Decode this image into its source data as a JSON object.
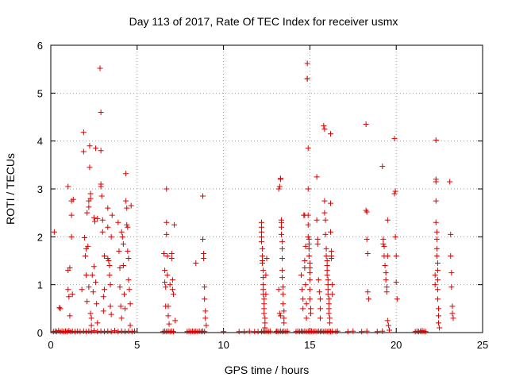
{
  "chart_data": {
    "type": "scatter",
    "title": "Day 113 of 2017, Rate Of TEC Index for receiver usmx",
    "xlabel": "GPS time / hours",
    "ylabel": "ROTI / TECUs",
    "xlim": [
      0,
      25
    ],
    "ylim": [
      0,
      6
    ],
    "xticks": [
      0,
      5,
      10,
      15,
      20,
      25
    ],
    "yticks": [
      0,
      1,
      2,
      3,
      4,
      5,
      6
    ],
    "grid": true,
    "marker": "plus",
    "color": "#dd0000",
    "points": [
      [
        0.15,
        0.02
      ],
      [
        0.25,
        0.03
      ],
      [
        0.35,
        0.02
      ],
      [
        0.45,
        0.04
      ],
      [
        0.55,
        0.02
      ],
      [
        0.65,
        0.03
      ],
      [
        0.75,
        0.02
      ],
      [
        0.85,
        0.03
      ],
      [
        0.95,
        0.02
      ],
      [
        1.05,
        0.04
      ],
      [
        1.15,
        0.02
      ],
      [
        1.25,
        0.03
      ],
      [
        1.4,
        0.02
      ],
      [
        1.55,
        0.03
      ],
      [
        1.7,
        0.02
      ],
      [
        1.9,
        0.03
      ],
      [
        2.05,
        0.02
      ],
      [
        2.2,
        0.03
      ],
      [
        2.35,
        0.02
      ],
      [
        2.5,
        0.04
      ],
      [
        2.7,
        0.02
      ],
      [
        2.9,
        0.03
      ],
      [
        3.1,
        0.02
      ],
      [
        3.3,
        0.03
      ],
      [
        3.5,
        0.02
      ],
      [
        3.7,
        0.04
      ],
      [
        3.9,
        0.02
      ],
      [
        4.1,
        0.03
      ],
      [
        4.3,
        0.02
      ],
      [
        4.5,
        0.03
      ],
      [
        4.7,
        0.02
      ],
      [
        4.85,
        0.03
      ],
      [
        0.2,
        2.1
      ],
      [
        0.5,
        0.52
      ],
      [
        0.55,
        0.5
      ],
      [
        1.0,
        3.05
      ],
      [
        1.0,
        1.3
      ],
      [
        1.0,
        0.9
      ],
      [
        1.05,
        0.75
      ],
      [
        1.1,
        1.35
      ],
      [
        1.1,
        0.35
      ],
      [
        1.2,
        2.75
      ],
      [
        1.2,
        2.45
      ],
      [
        1.2,
        2.0
      ],
      [
        1.25,
        0.8
      ],
      [
        1.3,
        2.78
      ],
      [
        1.8,
        0.9
      ],
      [
        1.9,
        4.18
      ],
      [
        1.9,
        3.78
      ],
      [
        1.95,
        1.98
      ],
      [
        2.0,
        1.6
      ],
      [
        2.05,
        1.75
      ],
      [
        2.05,
        1.2
      ],
      [
        2.1,
        0.65
      ],
      [
        2.1,
        2.5
      ],
      [
        2.15,
        1.8
      ],
      [
        2.2,
        2.75
      ],
      [
        2.2,
        2.62
      ],
      [
        2.2,
        0.95
      ],
      [
        2.25,
        3.9
      ],
      [
        2.25,
        3.45
      ],
      [
        2.3,
        2.8
      ],
      [
        2.3,
        2.9
      ],
      [
        2.3,
        0.4
      ],
      [
        2.35,
        0.3
      ],
      [
        2.35,
        0.15
      ],
      [
        2.4,
        1.2
      ],
      [
        2.45,
        0.85
      ],
      [
        2.5,
        1.38
      ],
      [
        2.5,
        2.4
      ],
      [
        2.55,
        2.32
      ],
      [
        2.6,
        3.85
      ],
      [
        2.6,
        1.05
      ],
      [
        2.65,
        0.6
      ],
      [
        2.7,
        2.38
      ],
      [
        2.7,
        0.2
      ],
      [
        2.85,
        5.52
      ],
      [
        2.9,
        4.6
      ],
      [
        2.9,
        3.8
      ],
      [
        2.9,
        3.05
      ],
      [
        2.9,
        3.1
      ],
      [
        2.95,
        2.85
      ],
      [
        3.0,
        2.35
      ],
      [
        3.0,
        2.1
      ],
      [
        3.05,
        0.75
      ],
      [
        3.05,
        0.45
      ],
      [
        3.1,
        1.6
      ],
      [
        3.1,
        0.9
      ],
      [
        3.3,
        2.6
      ],
      [
        3.3,
        2.2
      ],
      [
        3.3,
        1.55
      ],
      [
        3.35,
        1.5
      ],
      [
        3.4,
        1.4
      ],
      [
        3.4,
        1.2
      ],
      [
        3.45,
        1.0
      ],
      [
        3.45,
        0.55
      ],
      [
        3.5,
        0.38
      ],
      [
        3.5,
        2.0
      ],
      [
        3.55,
        2.45
      ],
      [
        3.9,
        2.3
      ],
      [
        3.95,
        1.7
      ],
      [
        4.0,
        1.35
      ],
      [
        4.0,
        0.95
      ],
      [
        4.05,
        0.55
      ],
      [
        4.1,
        0.3
      ],
      [
        4.1,
        2.1
      ],
      [
        4.15,
        2.0
      ],
      [
        4.2,
        1.85
      ],
      [
        4.2,
        1.4
      ],
      [
        4.25,
        0.8
      ],
      [
        4.3,
        0.5
      ],
      [
        4.35,
        3.32
      ],
      [
        4.35,
        2.75
      ],
      [
        4.4,
        2.6
      ],
      [
        4.4,
        2.25
      ],
      [
        4.45,
        2.2
      ],
      [
        4.45,
        1.7
      ],
      [
        4.5,
        1.55
      ],
      [
        4.5,
        1.1
      ],
      [
        4.55,
        0.9
      ],
      [
        4.6,
        0.6
      ],
      [
        4.6,
        0.15
      ],
      [
        4.65,
        2.65
      ],
      [
        6.5,
        0.02
      ],
      [
        6.6,
        0.03
      ],
      [
        6.7,
        0.02
      ],
      [
        6.8,
        0.03
      ],
      [
        6.9,
        0.02
      ],
      [
        7.0,
        0.03
      ],
      [
        7.1,
        0.02
      ],
      [
        6.55,
        1.65
      ],
      [
        6.6,
        1.3
      ],
      [
        6.6,
        1.05
      ],
      [
        6.65,
        0.95
      ],
      [
        6.65,
        0.55
      ],
      [
        6.7,
        3.0
      ],
      [
        6.7,
        2.3
      ],
      [
        6.7,
        2.05
      ],
      [
        6.75,
        1.6
      ],
      [
        6.75,
        1.2
      ],
      [
        6.8,
        0.55
      ],
      [
        6.8,
        0.35
      ],
      [
        6.85,
        0.18
      ],
      [
        6.9,
        1.0
      ],
      [
        7.0,
        1.65
      ],
      [
        7.0,
        1.55
      ],
      [
        7.05,
        1.1
      ],
      [
        7.05,
        0.9
      ],
      [
        7.1,
        0.8
      ],
      [
        7.15,
        2.25
      ],
      [
        7.2,
        0.25
      ],
      [
        7.9,
        0.02
      ],
      [
        8.0,
        0.03
      ],
      [
        8.1,
        0.02
      ],
      [
        8.2,
        0.03
      ],
      [
        8.3,
        0.02
      ],
      [
        8.4,
        0.03
      ],
      [
        8.5,
        0.02
      ],
      [
        8.6,
        0.03
      ],
      [
        8.7,
        0.02
      ],
      [
        8.8,
        0.03
      ],
      [
        8.9,
        0.02
      ],
      [
        8.4,
        1.45
      ],
      [
        8.8,
        2.85
      ],
      [
        8.8,
        1.95
      ],
      [
        8.85,
        1.65
      ],
      [
        8.85,
        1.55
      ],
      [
        8.9,
        0.95
      ],
      [
        8.9,
        0.7
      ],
      [
        8.95,
        0.45
      ],
      [
        8.95,
        0.3
      ],
      [
        9.0,
        0.15
      ],
      [
        10.0,
        0.02
      ],
      [
        10.9,
        0.02
      ],
      [
        11.2,
        0.02
      ],
      [
        11.5,
        0.03
      ],
      [
        11.8,
        0.02
      ],
      [
        12.0,
        0.02
      ],
      [
        12.2,
        0.02
      ],
      [
        12.3,
        0.03
      ],
      [
        12.4,
        0.02
      ],
      [
        12.5,
        0.03
      ],
      [
        12.6,
        0.02
      ],
      [
        12.7,
        0.03
      ],
      [
        12.2,
        2.3
      ],
      [
        12.2,
        2.2
      ],
      [
        12.2,
        2.1
      ],
      [
        12.2,
        2.0
      ],
      [
        12.2,
        1.9
      ],
      [
        12.25,
        1.75
      ],
      [
        12.25,
        1.6
      ],
      [
        12.25,
        1.5
      ],
      [
        12.25,
        1.45
      ],
      [
        12.3,
        1.3
      ],
      [
        12.3,
        1.15
      ],
      [
        12.3,
        1.0
      ],
      [
        12.3,
        0.9
      ],
      [
        12.3,
        0.8
      ],
      [
        12.35,
        0.7
      ],
      [
        12.35,
        0.6
      ],
      [
        12.35,
        0.5
      ],
      [
        12.35,
        0.4
      ],
      [
        12.4,
        0.3
      ],
      [
        12.4,
        0.2
      ],
      [
        12.4,
        0.1
      ],
      [
        12.45,
        1.2
      ],
      [
        12.45,
        0.8
      ],
      [
        12.5,
        1.55
      ],
      [
        13.05,
        0.02
      ],
      [
        13.1,
        0.03
      ],
      [
        13.2,
        0.02
      ],
      [
        13.3,
        0.03
      ],
      [
        13.4,
        0.02
      ],
      [
        13.5,
        0.03
      ],
      [
        13.6,
        0.02
      ],
      [
        13.7,
        0.03
      ],
      [
        13.2,
        3.0
      ],
      [
        13.25,
        3.05
      ],
      [
        13.3,
        3.2
      ],
      [
        13.3,
        3.22
      ],
      [
        13.35,
        2.35
      ],
      [
        13.35,
        2.3
      ],
      [
        13.35,
        2.2
      ],
      [
        13.35,
        2.05
      ],
      [
        13.4,
        1.9
      ],
      [
        13.4,
        1.75
      ],
      [
        13.4,
        1.55
      ],
      [
        13.4,
        1.3
      ],
      [
        13.4,
        1.15
      ],
      [
        13.45,
        0.95
      ],
      [
        13.45,
        0.8
      ],
      [
        13.45,
        0.6
      ],
      [
        13.5,
        0.45
      ],
      [
        13.5,
        0.3
      ],
      [
        13.5,
        0.2
      ],
      [
        13.3,
        0.35
      ],
      [
        13.25,
        0.4
      ],
      [
        13.2,
        0.9
      ],
      [
        14.2,
        0.02
      ],
      [
        14.3,
        0.03
      ],
      [
        14.4,
        0.02
      ],
      [
        14.5,
        0.03
      ],
      [
        14.6,
        0.02
      ],
      [
        14.7,
        0.03
      ],
      [
        14.8,
        0.02
      ],
      [
        14.9,
        0.03
      ],
      [
        15.0,
        0.02
      ],
      [
        15.1,
        0.03
      ],
      [
        15.2,
        0.02
      ],
      [
        15.3,
        0.03
      ],
      [
        15.4,
        0.02
      ],
      [
        15.5,
        0.03
      ],
      [
        15.6,
        0.02
      ],
      [
        15.7,
        0.03
      ],
      [
        15.8,
        0.02
      ],
      [
        15.9,
        0.03
      ],
      [
        16.0,
        0.02
      ],
      [
        16.1,
        0.03
      ],
      [
        16.2,
        0.02
      ],
      [
        16.3,
        0.03
      ],
      [
        14.5,
        1.2
      ],
      [
        14.55,
        0.9
      ],
      [
        14.6,
        0.7
      ],
      [
        14.6,
        0.5
      ],
      [
        14.65,
        2.45
      ],
      [
        14.7,
        2.45
      ],
      [
        14.7,
        1.5
      ],
      [
        14.7,
        1.35
      ],
      [
        14.75,
        1.8
      ],
      [
        14.75,
        1.0
      ],
      [
        14.8,
        0.6
      ],
      [
        14.8,
        0.3
      ],
      [
        14.85,
        5.62
      ],
      [
        14.85,
        5.3
      ],
      [
        14.85,
        5.3
      ],
      [
        14.9,
        3.85
      ],
      [
        14.9,
        3.0
      ],
      [
        14.9,
        2.45
      ],
      [
        14.9,
        2.25
      ],
      [
        14.9,
        2.0
      ],
      [
        14.95,
        1.95
      ],
      [
        14.95,
        1.85
      ],
      [
        14.95,
        1.75
      ],
      [
        14.95,
        1.6
      ],
      [
        15.0,
        1.45
      ],
      [
        15.0,
        1.35
      ],
      [
        15.0,
        1.25
      ],
      [
        15.0,
        1.1
      ],
      [
        15.0,
        0.9
      ],
      [
        15.0,
        0.7
      ],
      [
        15.05,
        0.5
      ],
      [
        15.05,
        0.4
      ],
      [
        15.4,
        3.25
      ],
      [
        15.4,
        2.35
      ],
      [
        15.45,
        1.95
      ],
      [
        15.45,
        1.85
      ],
      [
        15.5,
        1.1
      ],
      [
        15.55,
        0.85
      ],
      [
        15.6,
        0.7
      ],
      [
        15.6,
        0.5
      ],
      [
        15.6,
        0.3
      ],
      [
        15.8,
        4.32
      ],
      [
        15.85,
        4.25
      ],
      [
        15.85,
        2.75
      ],
      [
        15.85,
        2.5
      ],
      [
        15.9,
        2.35
      ],
      [
        15.9,
        2.05
      ],
      [
        15.95,
        1.75
      ],
      [
        15.95,
        1.6
      ],
      [
        16.0,
        1.5
      ],
      [
        16.0,
        1.4
      ],
      [
        16.0,
        1.3
      ],
      [
        16.0,
        1.2
      ],
      [
        16.05,
        1.1
      ],
      [
        16.05,
        1.0
      ],
      [
        16.05,
        0.9
      ],
      [
        16.05,
        0.8
      ],
      [
        16.1,
        0.7
      ],
      [
        16.1,
        0.6
      ],
      [
        16.1,
        0.5
      ],
      [
        16.1,
        0.4
      ],
      [
        16.15,
        0.3
      ],
      [
        16.15,
        0.2
      ],
      [
        16.2,
        4.15
      ],
      [
        16.2,
        2.7
      ],
      [
        16.2,
        2.1
      ],
      [
        16.25,
        1.7
      ],
      [
        16.25,
        1.6
      ],
      [
        16.25,
        1.55
      ],
      [
        16.3,
        1.0
      ],
      [
        16.3,
        0.8
      ],
      [
        16.5,
        0.02
      ],
      [
        16.6,
        0.03
      ],
      [
        17.2,
        0.02
      ],
      [
        17.5,
        0.03
      ],
      [
        18.0,
        0.02
      ],
      [
        18.3,
        0.03
      ],
      [
        18.9,
        0.02
      ],
      [
        19.2,
        0.03
      ],
      [
        18.25,
        4.35
      ],
      [
        18.25,
        2.55
      ],
      [
        18.3,
        2.52
      ],
      [
        18.3,
        1.95
      ],
      [
        18.35,
        1.65
      ],
      [
        18.35,
        0.85
      ],
      [
        18.4,
        0.7
      ],
      [
        19.2,
        3.47
      ],
      [
        19.25,
        1.95
      ],
      [
        19.25,
        1.85
      ],
      [
        19.3,
        1.8
      ],
      [
        19.3,
        1.6
      ],
      [
        19.35,
        1.4
      ],
      [
        19.4,
        1.25
      ],
      [
        19.4,
        1.1
      ],
      [
        19.45,
        0.95
      ],
      [
        19.45,
        0.85
      ],
      [
        19.5,
        2.35
      ],
      [
        19.5,
        1.6
      ],
      [
        19.5,
        0.25
      ],
      [
        19.55,
        0.15
      ],
      [
        19.6,
        0.05
      ],
      [
        19.9,
        4.05
      ],
      [
        19.9,
        2.9
      ],
      [
        19.95,
        2.95
      ],
      [
        19.95,
        2.0
      ],
      [
        20.0,
        1.6
      ],
      [
        20.0,
        1.05
      ],
      [
        20.05,
        0.7
      ],
      [
        21.1,
        0.02
      ],
      [
        21.2,
        0.03
      ],
      [
        21.3,
        0.02
      ],
      [
        21.4,
        0.03
      ],
      [
        21.5,
        0.02
      ],
      [
        21.6,
        0.03
      ],
      [
        21.7,
        0.02
      ],
      [
        21.5,
        0.04
      ],
      [
        22.3,
        4.02
      ],
      [
        22.3,
        3.2
      ],
      [
        22.3,
        3.15
      ],
      [
        22.3,
        2.75
      ],
      [
        22.3,
        2.3
      ],
      [
        22.35,
        2.1
      ],
      [
        22.35,
        1.95
      ],
      [
        22.35,
        1.75
      ],
      [
        22.35,
        1.6
      ],
      [
        22.4,
        1.45
      ],
      [
        22.4,
        1.3
      ],
      [
        22.4,
        1.1
      ],
      [
        22.4,
        0.9
      ],
      [
        22.4,
        0.7
      ],
      [
        22.45,
        0.5
      ],
      [
        22.45,
        0.35
      ],
      [
        22.45,
        0.2
      ],
      [
        22.5,
        0.1
      ],
      [
        22.25,
        1.2
      ],
      [
        22.25,
        1.0
      ],
      [
        23.1,
        3.15
      ],
      [
        23.15,
        2.05
      ],
      [
        23.15,
        1.6
      ],
      [
        23.2,
        1.25
      ],
      [
        23.2,
        0.95
      ],
      [
        23.25,
        0.55
      ],
      [
        23.25,
        0.4
      ],
      [
        23.3,
        0.3
      ]
    ]
  }
}
